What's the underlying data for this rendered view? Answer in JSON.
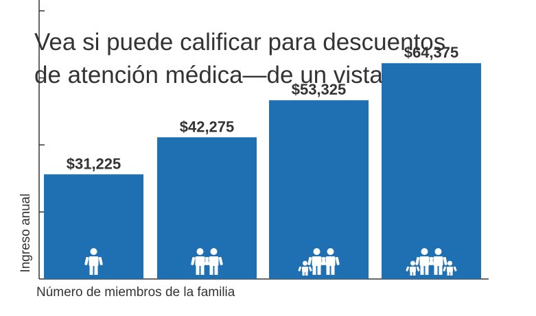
{
  "chart_data": {
    "type": "bar",
    "title_lines": [
      "Vea si puede calificar para descuentos",
      "de atención médica—de un vistazo:"
    ],
    "xlabel": "Número de miembros de la familia",
    "ylabel": "Ingreso anual",
    "categories": [
      "1",
      "2",
      "3",
      "4"
    ],
    "values": [
      31225,
      42275,
      53325,
      64375
    ],
    "data_labels": [
      "$31,225",
      "$42,275",
      "$53,325",
      "$64,375"
    ],
    "family_icons": [
      [
        "adult"
      ],
      [
        "adult",
        "adult"
      ],
      [
        "child",
        "adult",
        "adult"
      ],
      [
        "child",
        "adult",
        "adult",
        "child"
      ]
    ],
    "ylim": [
      0,
      100000
    ],
    "y_ticks": [
      20000,
      40000,
      60000,
      80000,
      100000
    ],
    "bar_color": "#1f6fb3",
    "grid": false
  }
}
